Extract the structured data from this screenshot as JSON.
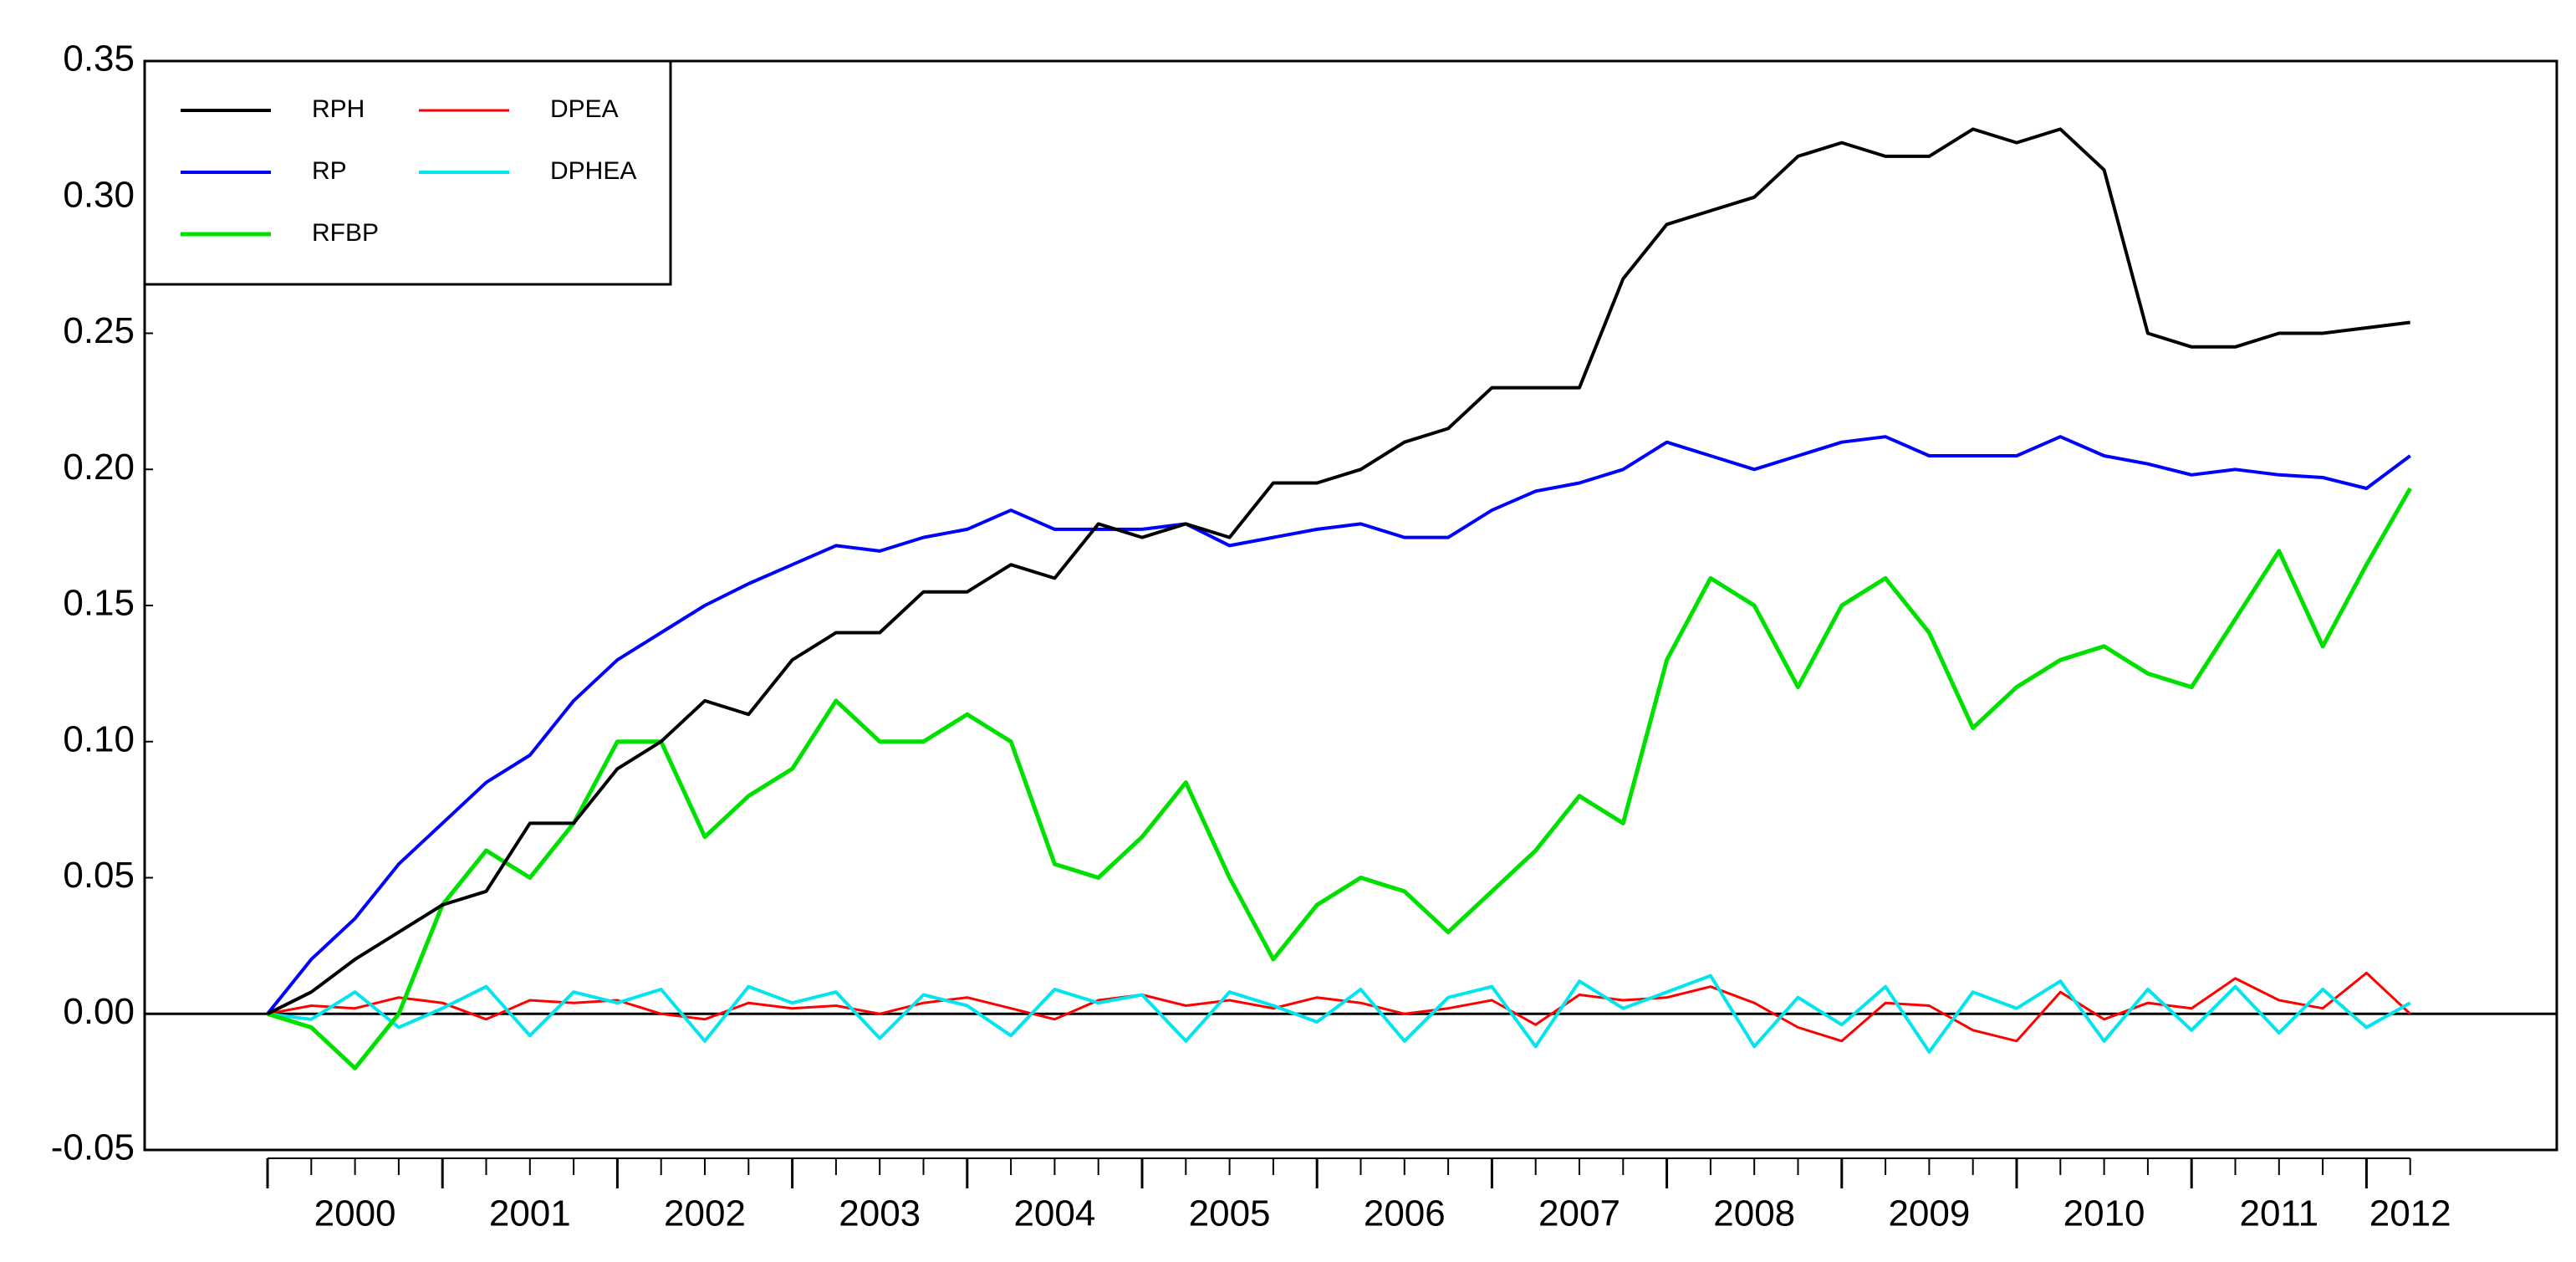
{
  "chart_data": {
    "type": "line",
    "categories": [
      null,
      null,
      "2000",
      null,
      null,
      null,
      "2001",
      null,
      null,
      null,
      "2002",
      null,
      null,
      null,
      "2003",
      null,
      null,
      null,
      "2004",
      null,
      null,
      null,
      "2005",
      null,
      null,
      null,
      "2006",
      null,
      null,
      null,
      "2007",
      null,
      null,
      null,
      "2008",
      null,
      null,
      null,
      "2009",
      null,
      null,
      null,
      "2010",
      null,
      null,
      null,
      "2011",
      null,
      null,
      "2012"
    ],
    "series": [
      {
        "name": "RPH",
        "color": "#000000",
        "values": [
          0,
          0.008,
          0.02,
          0.03,
          0.04,
          0.045,
          0.07,
          0.07,
          0.09,
          0.1,
          0.115,
          0.11,
          0.13,
          0.14,
          0.14,
          0.155,
          0.155,
          0.165,
          0.16,
          0.18,
          0.175,
          0.18,
          0.175,
          0.195,
          0.195,
          0.2,
          0.21,
          0.215,
          0.23,
          0.23,
          0.23,
          0.27,
          0.29,
          0.295,
          0.3,
          0.315,
          0.32,
          0.315,
          0.315,
          0.325,
          0.32,
          0.325,
          0.31,
          0.25,
          0.245,
          0.245,
          0.25,
          0.25,
          0.252,
          0.254
        ]
      },
      {
        "name": "RP",
        "color": "#0000ff",
        "values": [
          0,
          0.02,
          0.035,
          0.055,
          0.07,
          0.085,
          0.095,
          0.115,
          0.13,
          0.14,
          0.15,
          0.158,
          0.165,
          0.172,
          0.17,
          0.175,
          0.178,
          0.185,
          0.178,
          0.178,
          0.178,
          0.18,
          0.172,
          0.175,
          0.178,
          0.18,
          0.175,
          0.175,
          0.185,
          0.192,
          0.195,
          0.2,
          0.21,
          0.205,
          0.2,
          0.205,
          0.21,
          0.212,
          0.205,
          0.205,
          0.205,
          0.212,
          0.205,
          0.202,
          0.198,
          0.2,
          0.198,
          0.197,
          0.193,
          0.205
        ]
      },
      {
        "name": "RFBP",
        "color": "#00e000",
        "values": [
          0,
          -0.005,
          -0.02,
          0.0,
          0.04,
          0.06,
          0.05,
          0.07,
          0.1,
          0.1,
          0.065,
          0.08,
          0.09,
          0.115,
          0.1,
          0.1,
          0.11,
          0.1,
          0.055,
          0.05,
          0.065,
          0.085,
          0.05,
          0.02,
          0.04,
          0.05,
          0.045,
          0.03,
          0.045,
          0.06,
          0.08,
          0.07,
          0.13,
          0.16,
          0.15,
          0.12,
          0.15,
          0.16,
          0.14,
          0.105,
          0.12,
          0.13,
          0.135,
          0.125,
          0.12,
          0.145,
          0.17,
          0.135,
          0.165,
          0.193
        ]
      },
      {
        "name": "DPEA",
        "color": "#ff0000",
        "values": [
          0,
          0.003,
          0.002,
          0.006,
          0.004,
          -0.002,
          0.005,
          0.004,
          0.005,
          0.0,
          -0.002,
          0.004,
          0.002,
          0.003,
          0.0,
          0.004,
          0.006,
          0.002,
          -0.002,
          0.005,
          0.007,
          0.003,
          0.005,
          0.002,
          0.006,
          0.004,
          0.0,
          0.002,
          0.005,
          -0.004,
          0.007,
          0.005,
          0.006,
          0.01,
          0.004,
          -0.005,
          -0.01,
          0.004,
          0.003,
          -0.006,
          -0.01,
          0.008,
          -0.002,
          0.004,
          0.002,
          0.013,
          0.005,
          0.002,
          0.015,
          0.0
        ]
      },
      {
        "name": "DPHEA",
        "color": "#00e5ee",
        "values": [
          0,
          -0.002,
          0.008,
          -0.005,
          0.002,
          0.01,
          -0.008,
          0.008,
          0.004,
          0.009,
          -0.01,
          0.01,
          0.004,
          0.008,
          -0.009,
          0.007,
          0.003,
          -0.008,
          0.009,
          0.004,
          0.007,
          -0.01,
          0.008,
          0.003,
          -0.003,
          0.009,
          -0.01,
          0.006,
          0.01,
          -0.012,
          0.012,
          0.002,
          0.008,
          0.014,
          -0.012,
          0.006,
          -0.004,
          0.01,
          -0.014,
          0.008,
          0.002,
          0.012,
          -0.01,
          0.009,
          -0.006,
          0.01,
          -0.007,
          0.009,
          -0.005,
          0.004
        ]
      }
    ],
    "ylim": [
      -0.05,
      0.35
    ],
    "yticks": [
      -0.05,
      {
        "value": 0,
        "label": "0.00"
      },
      0.05,
      {
        "value": 0.1,
        "label": "0.10"
      },
      0.15,
      {
        "value": 0.2,
        "label": "0.20"
      },
      0.25,
      {
        "value": 0.3,
        "label": "0.30"
      },
      0.35
    ],
    "legend": "upper left",
    "legend_columns": 2
  }
}
